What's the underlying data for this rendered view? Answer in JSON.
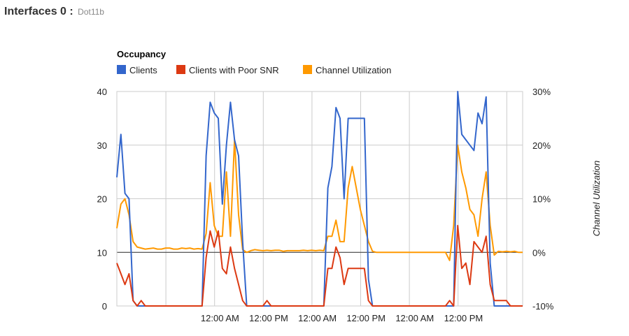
{
  "header": {
    "title": "Interfaces 0 :",
    "subtitle": "Dot11b"
  },
  "colors": {
    "clients": "#3366cc",
    "poor_snr": "#dc3912",
    "channel": "#ff9900",
    "grid": "#cccccc",
    "baseline": "#333333"
  },
  "chart_data": {
    "type": "line",
    "title": "Occupancy",
    "xlabel": "",
    "ylabel": "",
    "y2label": "Channel Utilization",
    "ylim": [
      0,
      40
    ],
    "y2lim": [
      -10,
      30
    ],
    "yticks": [
      "0",
      "10",
      "20",
      "30",
      "40"
    ],
    "y2ticks": [
      "-10%",
      "0%",
      "10%",
      "20%",
      "30%"
    ],
    "xticks": [
      "12:00 AM",
      "12:00 PM",
      "12:00 AM",
      "12:00 PM",
      "12:00 AM",
      "12:00 PM"
    ],
    "x_hours": [
      0,
      1,
      2,
      3,
      4,
      5,
      6,
      7,
      8,
      9,
      10,
      11,
      12,
      13,
      14,
      15,
      16,
      17,
      18,
      19,
      20,
      21,
      22,
      23,
      24,
      25,
      26,
      27,
      28,
      29,
      30,
      31,
      32,
      33,
      34,
      35,
      36,
      37,
      38,
      39,
      40,
      41,
      42,
      43,
      44,
      45,
      46,
      47,
      48,
      49,
      50,
      51,
      52,
      53,
      54,
      55,
      56,
      57,
      58,
      59,
      60,
      61,
      62,
      63,
      64,
      65,
      66,
      67,
      68,
      69,
      70,
      71,
      72,
      73,
      74,
      75,
      76,
      77,
      78,
      79,
      80,
      81,
      82,
      83,
      84,
      85,
      86,
      87,
      88,
      89,
      90,
      91,
      92,
      93,
      94,
      95,
      96,
      97,
      98,
      99,
      100
    ],
    "series": [
      {
        "name": "Clients",
        "axis": "left",
        "values": [
          24,
          32,
          21,
          20,
          1,
          0,
          0,
          0,
          0,
          0,
          0,
          0,
          0,
          0,
          0,
          0,
          0,
          0,
          0,
          0,
          0,
          0,
          28,
          38,
          36,
          35,
          19,
          30,
          38,
          31,
          28,
          12,
          0,
          0,
          0,
          0,
          0,
          0,
          0,
          0,
          0,
          0,
          0,
          0,
          0,
          0,
          0,
          0,
          0,
          0,
          0,
          0,
          22,
          26,
          37,
          35,
          20,
          35,
          35,
          35,
          35,
          35,
          5,
          0,
          0,
          0,
          0,
          0,
          0,
          0,
          0,
          0,
          0,
          0,
          0,
          0,
          0,
          0,
          0,
          0,
          0,
          0,
          0,
          0,
          40,
          32,
          31,
          30,
          29,
          36,
          34,
          39,
          8,
          0,
          0,
          0,
          0,
          0,
          0,
          0,
          0
        ]
      },
      {
        "name": "Clients with Poor SNR",
        "axis": "left",
        "values": [
          8,
          6,
          4,
          6,
          1,
          0,
          1,
          0,
          0,
          0,
          0,
          0,
          0,
          0,
          0,
          0,
          0,
          0,
          0,
          0,
          0,
          0,
          9,
          14,
          11,
          14,
          7,
          6,
          11,
          7,
          4,
          1,
          0,
          0,
          0,
          0,
          0,
          1,
          0,
          0,
          0,
          0,
          0,
          0,
          0,
          0,
          0,
          0,
          0,
          0,
          0,
          0,
          7,
          7,
          11,
          9,
          4,
          7,
          7,
          7,
          7,
          7,
          1,
          0,
          0,
          0,
          0,
          0,
          0,
          0,
          0,
          0,
          0,
          0,
          0,
          0,
          0,
          0,
          0,
          0,
          0,
          0,
          1,
          0,
          15,
          7,
          8,
          4,
          12,
          11,
          10,
          13,
          4,
          1,
          1,
          1,
          1,
          0,
          0,
          0,
          0
        ]
      },
      {
        "name": "Channel Utilization",
        "axis": "right",
        "values": [
          4.5,
          9,
          10,
          7,
          2,
          1,
          0.8,
          0.6,
          0.7,
          0.8,
          0.6,
          0.6,
          0.8,
          0.8,
          0.6,
          0.6,
          0.8,
          0.7,
          0.8,
          0.6,
          0.7,
          0.6,
          3.5,
          13,
          5,
          3,
          3,
          15,
          3,
          21,
          7,
          0.5,
          0,
          0.3,
          0.5,
          0.4,
          0.3,
          0.4,
          0.3,
          0.4,
          0.4,
          0.2,
          0.3,
          0.3,
          0.3,
          0.3,
          0.4,
          0.3,
          0.4,
          0.3,
          0.4,
          0.3,
          3,
          3,
          6,
          2,
          2,
          12,
          16,
          12,
          8,
          5,
          2,
          0.2,
          0,
          0,
          0,
          0,
          0,
          0,
          0,
          0,
          0,
          0,
          0,
          0,
          0,
          0,
          0,
          0,
          0,
          0,
          -1.5,
          5,
          20,
          15,
          12,
          8,
          7,
          3,
          10,
          15,
          5,
          -0.5,
          0.2,
          0.1,
          0.2,
          0.1,
          0.2,
          0,
          0
        ]
      }
    ],
    "legend_position": "top-left",
    "grid": true
  }
}
